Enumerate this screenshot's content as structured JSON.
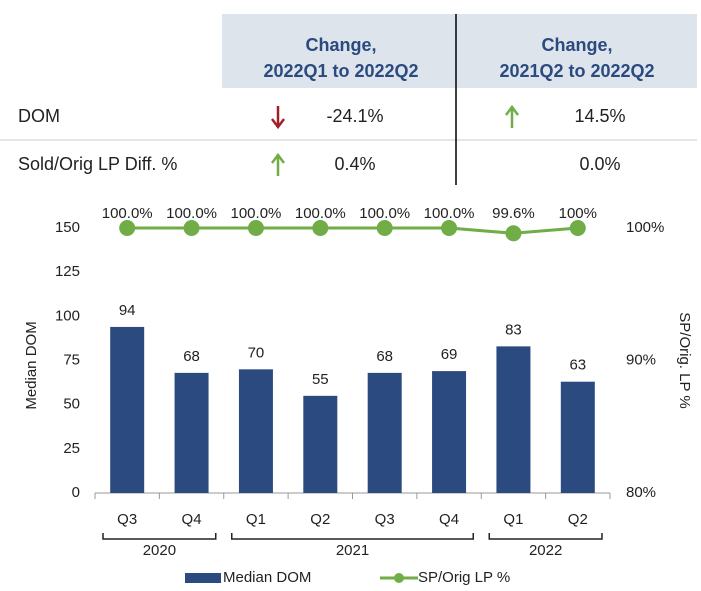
{
  "table": {
    "headers": [
      [
        "Change,",
        "2022Q1 to 2022Q2"
      ],
      [
        "Change,",
        "2021Q2 to 2022Q2"
      ]
    ],
    "rows": [
      [
        "DOM",
        "-24.1%",
        "14.5%"
      ],
      [
        "Sold/Orig LP Diff. %",
        "0.4%",
        "0.0%"
      ]
    ]
  },
  "chart_data": {
    "type": "bar",
    "groups": [
      {
        "name": "2020",
        "categories": [
          "Q3",
          "Q4"
        ]
      },
      {
        "name": "2021",
        "categories": [
          "Q1",
          "Q2",
          "Q3",
          "Q4"
        ]
      },
      {
        "name": "2022",
        "categories": [
          "Q1",
          "Q2"
        ]
      }
    ],
    "series": [
      {
        "name": "Median DOM",
        "color": "#2b4a80",
        "type": "bar",
        "values": [
          94,
          68,
          70,
          55,
          68,
          69,
          83,
          63
        ]
      },
      {
        "name": "SP/Orig LP %",
        "color": "#70ad47",
        "type": "line",
        "axis": "y2",
        "values": [
          100,
          100,
          100,
          100,
          100,
          100,
          99.6,
          100
        ],
        "value_labels": [
          "100.0%",
          "100.0%",
          "100.0%",
          "100.0%",
          "100.0%",
          "100.0%",
          "99.6%",
          "100%"
        ]
      }
    ],
    "ylabel": "Median DOM",
    "y2label": "SP/Orig. LP %",
    "ylim": [
      0,
      150
    ],
    "yticks": [
      0,
      25,
      50,
      75,
      100,
      125,
      150
    ],
    "y2lim": [
      80,
      100
    ],
    "y2ticks": [
      {
        "value": 80,
        "label": "80%"
      },
      {
        "value": 90,
        "label": "90%"
      },
      {
        "value": 100,
        "label": "100%"
      }
    ],
    "legend": "bottom"
  }
}
